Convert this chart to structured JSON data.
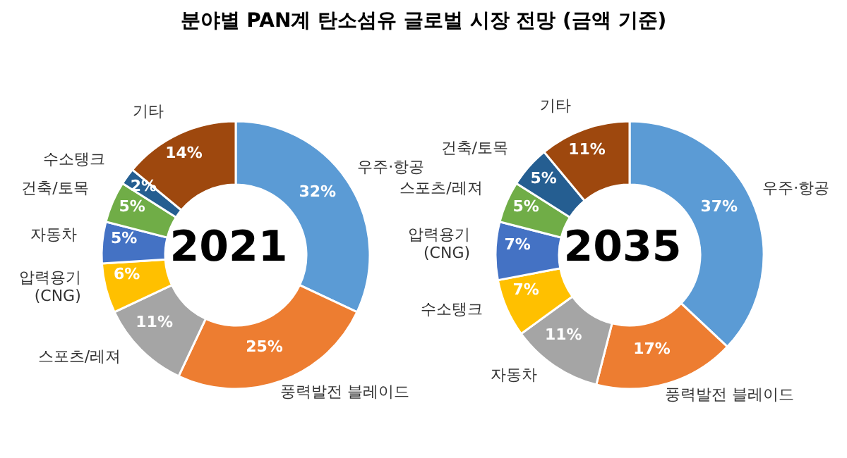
{
  "chart_data": [
    {
      "type": "donut",
      "title": "분야별 PAN계 탄소섬유 글로벌 시장 전망 (금액 기준)",
      "annotations": [
        "2021"
      ],
      "categories": [
        "우주·항공",
        "풍력발전 블레이드",
        "스포츠/레져",
        "압력용기\n(CNG)",
        "자동차",
        "건축/토목",
        "수소탱크",
        "기타"
      ],
      "values": [
        32,
        25,
        11,
        6,
        5,
        5,
        2,
        14
      ],
      "value_labels": [
        "32%",
        "25%",
        "11%",
        "6%",
        "5%",
        "5%",
        "2%",
        "14%"
      ],
      "colors": [
        "#5b9bd5",
        "#ed7d31",
        "#a5a5a5",
        "#ffc000",
        "#4472c4",
        "#70ad47",
        "#255e91",
        "#9e480e"
      ],
      "legend": false
    },
    {
      "type": "donut",
      "annotations": [
        "2035"
      ],
      "categories": [
        "우주·항공",
        "풍력발전 블레이드",
        "자동차",
        "수소탱크",
        "압력용기\n(CNG)",
        "스포츠/레져",
        "건축/토목",
        "기타"
      ],
      "values": [
        37,
        17,
        11,
        7,
        7,
        5,
        5,
        11
      ],
      "value_labels": [
        "37%",
        "17%",
        "11%",
        "7%",
        "7%",
        "5%",
        "5%",
        "11%"
      ],
      "colors": [
        "#5b9bd5",
        "#ed7d31",
        "#a5a5a5",
        "#ffc000",
        "#4472c4",
        "#70ad47",
        "#255e91",
        "#9e480e"
      ],
      "legend": false
    }
  ]
}
